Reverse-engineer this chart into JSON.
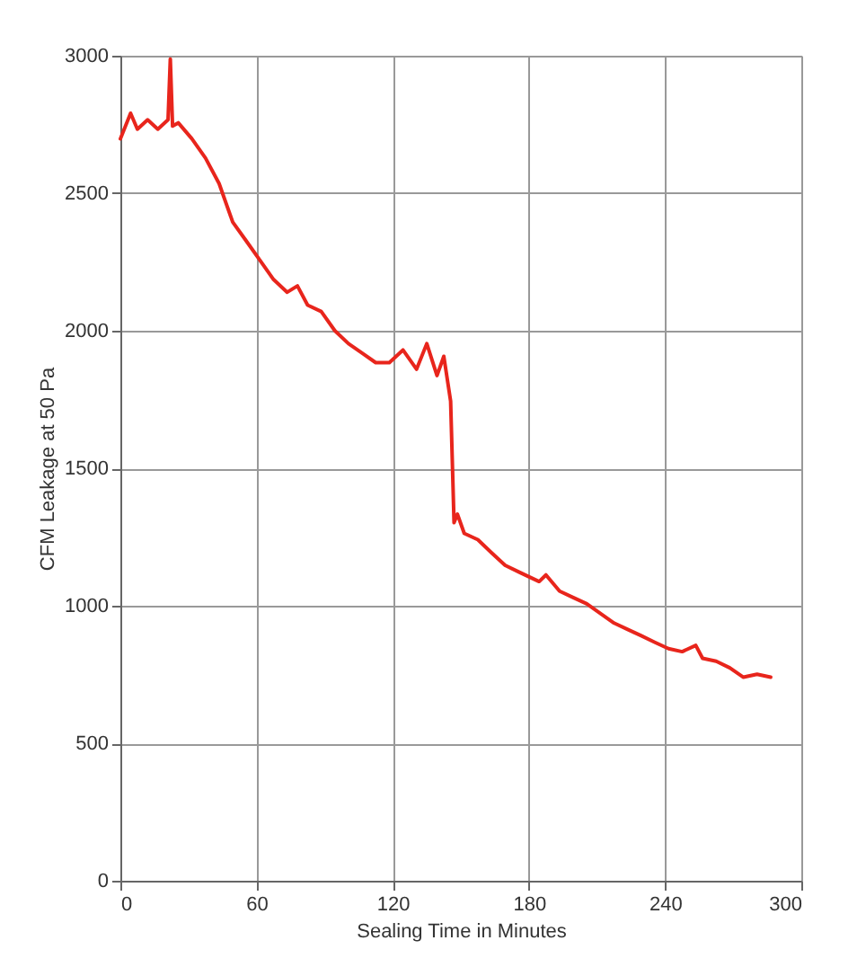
{
  "chart_data": {
    "type": "line",
    "xlabel": "Sealing Time in Minutes",
    "ylabel": "CFM Leakage at 50 Pa",
    "xlim": [
      0,
      300
    ],
    "xticks": [
      0,
      60,
      120,
      180,
      240,
      300
    ],
    "ylim": [
      0,
      3000
    ],
    "yticks": [
      0,
      500,
      1000,
      1500,
      2000,
      2500,
      3000
    ],
    "grid": true,
    "line_style": "solid",
    "marker": "none",
    "series": [
      {
        "color": "#e8251c",
        "x": [
          0,
          4.5,
          7.5,
          12,
          16.5,
          21,
          22,
          23,
          25.5,
          31.5,
          37.5,
          43.5,
          49.5,
          55.5,
          61.5,
          67.5,
          73.5,
          78,
          82.5,
          88.5,
          94.5,
          100.5,
          106.5,
          112.5,
          118.5,
          124.5,
          130.5,
          135,
          139.5,
          142.5,
          145.5,
          147,
          148.5,
          151.5,
          157.5,
          163.5,
          169.5,
          175.5,
          184.5,
          187.5,
          193.5,
          199.5,
          205.5,
          211.5,
          217.5,
          223.5,
          229.5,
          235.5,
          241.5,
          247.5,
          253.5,
          256.5,
          262.5,
          268.5,
          274.5,
          280.5,
          286.5
        ],
        "values": [
          2698,
          2791,
          2733,
          2767,
          2733,
          2767,
          2988,
          2744,
          2756,
          2698,
          2628,
          2535,
          2395,
          2326,
          2256,
          2186,
          2140,
          2163,
          2093,
          2070,
          2000,
          1953,
          1919,
          1884,
          1884,
          1930,
          1860,
          1953,
          1837,
          1907,
          1744,
          1302,
          1333,
          1263,
          1240,
          1193,
          1147,
          1123,
          1088,
          1112,
          1053,
          1030,
          1007,
          972,
          937,
          914,
          891,
          867,
          844,
          833,
          856,
          809,
          798,
          774,
          740,
          751,
          740
        ]
      }
    ]
  }
}
